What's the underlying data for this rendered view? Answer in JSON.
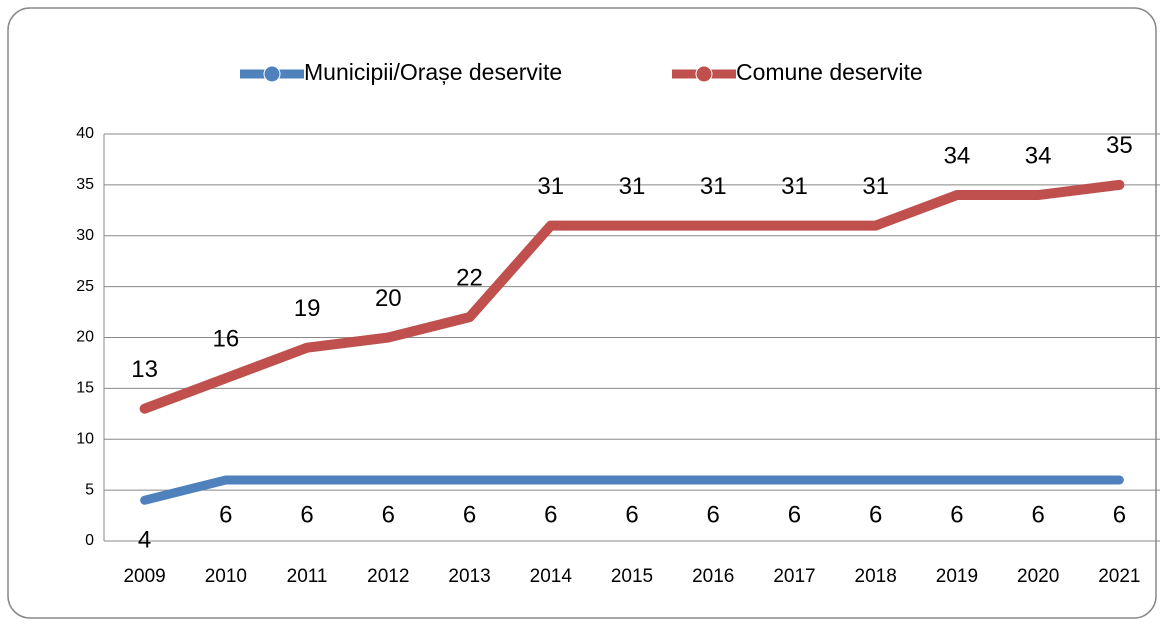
{
  "chart_data": {
    "type": "line",
    "categories": [
      "2009",
      "2010",
      "2011",
      "2012",
      "2013",
      "2014",
      "2015",
      "2016",
      "2017",
      "2018",
      "2019",
      "2020",
      "2021"
    ],
    "series": [
      {
        "name": "Municipii/Orașe deservite",
        "color": "#4f81bd",
        "values": [
          4,
          6,
          6,
          6,
          6,
          6,
          6,
          6,
          6,
          6,
          6,
          6,
          6
        ]
      },
      {
        "name": "Comune deservite",
        "color": "#c0504d",
        "values": [
          13,
          16,
          19,
          20,
          22,
          31,
          31,
          31,
          31,
          31,
          34,
          34,
          35
        ]
      }
    ],
    "ylim": [
      0,
      40
    ],
    "yticks": [
      0,
      5,
      10,
      15,
      20,
      25,
      30,
      35,
      40
    ],
    "grid": true,
    "legend": "top"
  }
}
